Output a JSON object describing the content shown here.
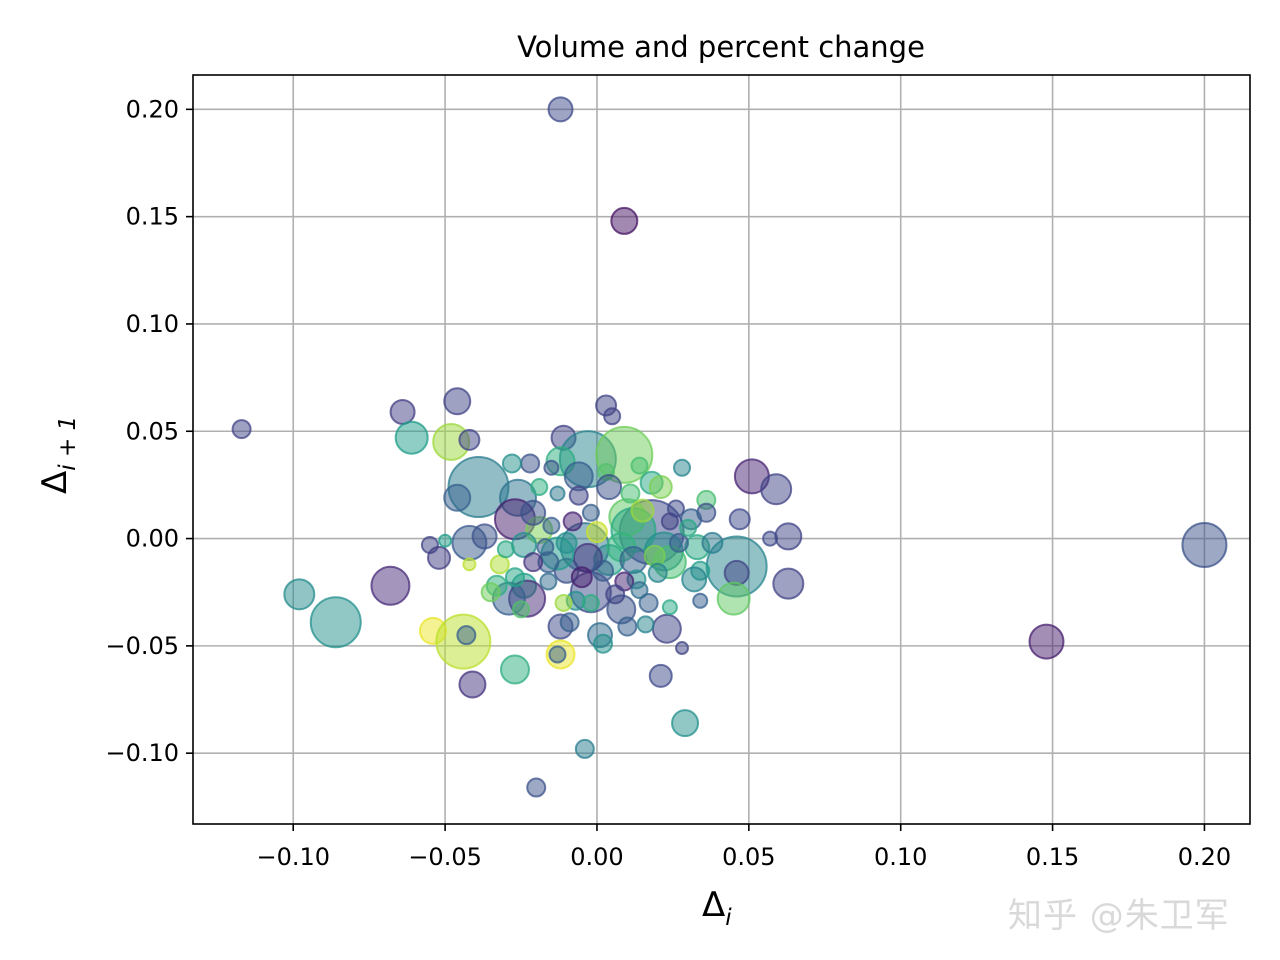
{
  "watermark": "知乎 @朱卫军",
  "chart_data": {
    "type": "scatter",
    "title": "Volume and percent change",
    "xlabel_main": "Δ",
    "xlabel_sub": "i",
    "ylabel_main": "Δ",
    "ylabel_sub": "i + 1",
    "xlim": [
      -0.133,
      0.215
    ],
    "ylim": [
      -0.133,
      0.216
    ],
    "xticks": [
      -0.1,
      -0.05,
      0.0,
      0.05,
      0.1,
      0.15,
      0.2
    ],
    "xtick_labels": [
      "−0.10",
      "−0.05",
      "0.00",
      "0.05",
      "0.10",
      "0.15",
      "0.20"
    ],
    "yticks": [
      -0.1,
      -0.05,
      0.0,
      0.05,
      0.1,
      0.15,
      0.2
    ],
    "ytick_labels": [
      "−0.10",
      "−0.05",
      "0.00",
      "0.05",
      "0.10",
      "0.15",
      "0.20"
    ],
    "grid": true,
    "colormap": "viridis",
    "alpha": 0.5,
    "points": [
      {
        "x": -0.012,
        "y": 0.2,
        "r": 12,
        "c": 0.22
      },
      {
        "x": 0.009,
        "y": 0.148,
        "r": 13,
        "c": 0.05
      },
      {
        "x": -0.117,
        "y": 0.051,
        "r": 9,
        "c": 0.2
      },
      {
        "x": -0.064,
        "y": 0.059,
        "r": 12,
        "c": 0.18
      },
      {
        "x": -0.046,
        "y": 0.064,
        "r": 13,
        "c": 0.2
      },
      {
        "x": -0.061,
        "y": 0.047,
        "r": 16,
        "c": 0.55
      },
      {
        "x": -0.048,
        "y": 0.045,
        "r": 18,
        "c": 0.85
      },
      {
        "x": -0.042,
        "y": 0.046,
        "r": 10,
        "c": 0.2
      },
      {
        "x": 0.003,
        "y": 0.062,
        "r": 10,
        "c": 0.2
      },
      {
        "x": 0.005,
        "y": 0.057,
        "r": 8,
        "c": 0.2
      },
      {
        "x": -0.011,
        "y": 0.047,
        "r": 12,
        "c": 0.2
      },
      {
        "x": -0.003,
        "y": 0.037,
        "r": 28,
        "c": 0.45
      },
      {
        "x": 0.009,
        "y": 0.039,
        "r": 28,
        "c": 0.78
      },
      {
        "x": -0.039,
        "y": 0.024,
        "r": 30,
        "c": 0.42
      },
      {
        "x": -0.046,
        "y": 0.019,
        "r": 13,
        "c": 0.3
      },
      {
        "x": -0.026,
        "y": 0.019,
        "r": 18,
        "c": 0.38
      },
      {
        "x": -0.027,
        "y": 0.009,
        "r": 20,
        "c": 0.08
      },
      {
        "x": -0.022,
        "y": 0.035,
        "r": 9,
        "c": 0.25
      },
      {
        "x": -0.028,
        "y": 0.035,
        "r": 9,
        "c": 0.5
      },
      {
        "x": -0.012,
        "y": 0.036,
        "r": 14,
        "c": 0.62
      },
      {
        "x": -0.015,
        "y": 0.033,
        "r": 7,
        "c": 0.25
      },
      {
        "x": -0.006,
        "y": 0.029,
        "r": 14,
        "c": 0.3
      },
      {
        "x": 0.003,
        "y": 0.031,
        "r": 8,
        "c": 0.72
      },
      {
        "x": 0.014,
        "y": 0.034,
        "r": 8,
        "c": 0.7
      },
      {
        "x": 0.018,
        "y": 0.026,
        "r": 11,
        "c": 0.6
      },
      {
        "x": 0.021,
        "y": 0.024,
        "r": 11,
        "c": 0.8
      },
      {
        "x": 0.028,
        "y": 0.033,
        "r": 8,
        "c": 0.45
      },
      {
        "x": 0.051,
        "y": 0.029,
        "r": 17,
        "c": 0.1
      },
      {
        "x": 0.059,
        "y": 0.023,
        "r": 15,
        "c": 0.2
      },
      {
        "x": 0.036,
        "y": 0.018,
        "r": 9,
        "c": 0.7
      },
      {
        "x": 0.036,
        "y": 0.012,
        "r": 9,
        "c": 0.25
      },
      {
        "x": 0.047,
        "y": 0.009,
        "r": 10,
        "c": 0.22
      },
      {
        "x": 0.063,
        "y": 0.001,
        "r": 13,
        "c": 0.2
      },
      {
        "x": 0.057,
        "y": 0.0,
        "r": 7,
        "c": 0.22
      },
      {
        "x": 0.018,
        "y": 0.003,
        "r": 32,
        "c": 0.22
      },
      {
        "x": 0.01,
        "y": 0.01,
        "r": 18,
        "c": 0.75
      },
      {
        "x": 0.012,
        "y": 0.004,
        "r": 22,
        "c": 0.6
      },
      {
        "x": 0.022,
        "y": -0.006,
        "r": 19,
        "c": 0.5
      },
      {
        "x": 0.024,
        "y": -0.011,
        "r": 16,
        "c": 0.7
      },
      {
        "x": 0.031,
        "y": 0.009,
        "r": 10,
        "c": 0.3
      },
      {
        "x": 0.033,
        "y": -0.004,
        "r": 12,
        "c": 0.6
      },
      {
        "x": 0.038,
        "y": -0.002,
        "r": 10,
        "c": 0.4
      },
      {
        "x": 0.046,
        "y": -0.013,
        "r": 30,
        "c": 0.45
      },
      {
        "x": 0.046,
        "y": -0.016,
        "r": 12,
        "c": 0.2
      },
      {
        "x": 0.045,
        "y": -0.028,
        "r": 16,
        "c": 0.75
      },
      {
        "x": 0.063,
        "y": -0.021,
        "r": 15,
        "c": 0.2
      },
      {
        "x": 0.034,
        "y": -0.015,
        "r": 9,
        "c": 0.55
      },
      {
        "x": 0.032,
        "y": -0.019,
        "r": 12,
        "c": 0.45
      },
      {
        "x": 0.034,
        "y": -0.029,
        "r": 7,
        "c": 0.3
      },
      {
        "x": 0.017,
        "y": -0.03,
        "r": 9,
        "c": 0.3
      },
      {
        "x": 0.023,
        "y": -0.042,
        "r": 14,
        "c": 0.2
      },
      {
        "x": 0.016,
        "y": -0.04,
        "r": 8,
        "c": 0.45
      },
      {
        "x": 0.024,
        "y": -0.032,
        "r": 7,
        "c": 0.6
      },
      {
        "x": 0.028,
        "y": -0.051,
        "r": 6,
        "c": 0.2
      },
      {
        "x": 0.008,
        "y": -0.033,
        "r": 14,
        "c": 0.25
      },
      {
        "x": 0.01,
        "y": -0.041,
        "r": 9,
        "c": 0.3
      },
      {
        "x": 0.001,
        "y": -0.045,
        "r": 12,
        "c": 0.35
      },
      {
        "x": 0.002,
        "y": -0.049,
        "r": 9,
        "c": 0.5
      },
      {
        "x": -0.002,
        "y": -0.025,
        "r": 20,
        "c": 0.22
      },
      {
        "x": 0.004,
        "y": -0.01,
        "r": 15,
        "c": 0.55
      },
      {
        "x": -0.004,
        "y": -0.004,
        "r": 24,
        "c": 0.38
      },
      {
        "x": -0.003,
        "y": -0.009,
        "r": 14,
        "c": 0.15
      },
      {
        "x": 0.008,
        "y": -0.004,
        "r": 14,
        "c": 0.65
      },
      {
        "x": 0.012,
        "y": -0.01,
        "r": 13,
        "c": 0.3
      },
      {
        "x": 0.013,
        "y": -0.019,
        "r": 9,
        "c": 0.5
      },
      {
        "x": 0.009,
        "y": -0.02,
        "r": 9,
        "c": 0.1
      },
      {
        "x": -0.01,
        "y": -0.015,
        "r": 12,
        "c": 0.25
      },
      {
        "x": -0.013,
        "y": -0.007,
        "r": 16,
        "c": 0.55
      },
      {
        "x": -0.016,
        "y": -0.011,
        "r": 10,
        "c": 0.3
      },
      {
        "x": -0.019,
        "y": 0.004,
        "r": 13,
        "c": 0.8
      },
      {
        "x": -0.021,
        "y": 0.012,
        "r": 12,
        "c": 0.25
      },
      {
        "x": -0.024,
        "y": -0.003,
        "r": 12,
        "c": 0.5
      },
      {
        "x": -0.024,
        "y": -0.022,
        "r": 12,
        "c": 0.55
      },
      {
        "x": -0.023,
        "y": -0.028,
        "r": 18,
        "c": 0.12
      },
      {
        "x": -0.029,
        "y": -0.028,
        "r": 16,
        "c": 0.3
      },
      {
        "x": -0.025,
        "y": -0.033,
        "r": 8,
        "c": 0.72
      },
      {
        "x": -0.033,
        "y": -0.022,
        "r": 10,
        "c": 0.62
      },
      {
        "x": -0.035,
        "y": -0.025,
        "r": 9,
        "c": 0.78
      },
      {
        "x": -0.032,
        "y": -0.012,
        "r": 9,
        "c": 0.88
      },
      {
        "x": -0.027,
        "y": -0.018,
        "r": 9,
        "c": 0.58
      },
      {
        "x": -0.042,
        "y": -0.002,
        "r": 17,
        "c": 0.28
      },
      {
        "x": -0.037,
        "y": 0.001,
        "r": 12,
        "c": 0.25
      },
      {
        "x": -0.055,
        "y": -0.003,
        "r": 8,
        "c": 0.2
      },
      {
        "x": -0.052,
        "y": -0.009,
        "r": 11,
        "c": 0.18
      },
      {
        "x": -0.05,
        "y": -0.001,
        "r": 6,
        "c": 0.55
      },
      {
        "x": -0.042,
        "y": -0.012,
        "r": 6,
        "c": 0.9
      },
      {
        "x": -0.068,
        "y": -0.022,
        "r": 19,
        "c": 0.12
      },
      {
        "x": -0.098,
        "y": -0.026,
        "r": 15,
        "c": 0.48
      },
      {
        "x": -0.086,
        "y": -0.039,
        "r": 25,
        "c": 0.5
      },
      {
        "x": -0.054,
        "y": -0.043,
        "r": 13,
        "c": 0.97
      },
      {
        "x": -0.044,
        "y": -0.048,
        "r": 27,
        "c": 0.9
      },
      {
        "x": -0.043,
        "y": -0.045,
        "r": 9,
        "c": 0.3
      },
      {
        "x": -0.041,
        "y": -0.068,
        "r": 13,
        "c": 0.15
      },
      {
        "x": -0.027,
        "y": -0.061,
        "r": 14,
        "c": 0.62
      },
      {
        "x": -0.012,
        "y": -0.054,
        "r": 14,
        "c": 0.97
      },
      {
        "x": -0.013,
        "y": -0.054,
        "r": 8,
        "c": 0.3
      },
      {
        "x": -0.012,
        "y": -0.041,
        "r": 12,
        "c": 0.22
      },
      {
        "x": -0.009,
        "y": -0.039,
        "r": 9,
        "c": 0.3
      },
      {
        "x": -0.007,
        "y": -0.029,
        "r": 9,
        "c": 0.5
      },
      {
        "x": -0.011,
        "y": -0.03,
        "r": 8,
        "c": 0.85
      },
      {
        "x": -0.016,
        "y": -0.02,
        "r": 8,
        "c": 0.35
      },
      {
        "x": 0.021,
        "y": -0.064,
        "r": 11,
        "c": 0.22
      },
      {
        "x": 0.029,
        "y": -0.086,
        "r": 13,
        "c": 0.5
      },
      {
        "x": -0.004,
        "y": -0.098,
        "r": 9,
        "c": 0.42
      },
      {
        "x": -0.02,
        "y": -0.116,
        "r": 9,
        "c": 0.25
      },
      {
        "x": 0.148,
        "y": -0.048,
        "r": 17,
        "c": 0.08
      },
      {
        "x": 0.2,
        "y": -0.003,
        "r": 22,
        "c": 0.25
      },
      {
        "x": -0.006,
        "y": 0.02,
        "r": 9,
        "c": 0.2
      },
      {
        "x": -0.013,
        "y": 0.021,
        "r": 7,
        "c": 0.4
      },
      {
        "x": -0.002,
        "y": 0.012,
        "r": 8,
        "c": 0.3
      },
      {
        "x": 0.004,
        "y": 0.024,
        "r": 12,
        "c": 0.25
      },
      {
        "x": 0.011,
        "y": 0.021,
        "r": 9,
        "c": 0.7
      },
      {
        "x": 0.015,
        "y": 0.013,
        "r": 11,
        "c": 0.85
      },
      {
        "x": -0.008,
        "y": 0.008,
        "r": 9,
        "c": 0.1
      },
      {
        "x": -0.015,
        "y": 0.006,
        "r": 8,
        "c": 0.3
      },
      {
        "x": -0.01,
        "y": -0.002,
        "r": 10,
        "c": 0.5
      },
      {
        "x": -0.005,
        "y": -0.018,
        "r": 10,
        "c": 0.08
      },
      {
        "x": 0.002,
        "y": -0.015,
        "r": 10,
        "c": 0.28
      },
      {
        "x": 0.006,
        "y": -0.026,
        "r": 9,
        "c": 0.2
      },
      {
        "x": 0.019,
        "y": -0.008,
        "r": 10,
        "c": 0.8
      },
      {
        "x": 0.027,
        "y": -0.002,
        "r": 9,
        "c": 0.3
      },
      {
        "x": 0.03,
        "y": 0.005,
        "r": 8,
        "c": 0.6
      },
      {
        "x": 0.026,
        "y": 0.014,
        "r": 8,
        "c": 0.22
      },
      {
        "x": 0.024,
        "y": 0.008,
        "r": 8,
        "c": 0.2
      },
      {
        "x": -0.019,
        "y": 0.024,
        "r": 8,
        "c": 0.62
      },
      {
        "x": -0.017,
        "y": -0.004,
        "r": 8,
        "c": 0.3
      },
      {
        "x": -0.021,
        "y": -0.011,
        "r": 9,
        "c": 0.15
      },
      {
        "x": -0.03,
        "y": -0.005,
        "r": 8,
        "c": 0.6
      },
      {
        "x": 0.0,
        "y": 0.003,
        "r": 10,
        "c": 0.92
      },
      {
        "x": -0.002,
        "y": -0.03,
        "r": 8,
        "c": 0.62
      },
      {
        "x": 0.014,
        "y": -0.024,
        "r": 8,
        "c": 0.35
      },
      {
        "x": 0.02,
        "y": -0.016,
        "r": 9,
        "c": 0.45
      }
    ]
  }
}
